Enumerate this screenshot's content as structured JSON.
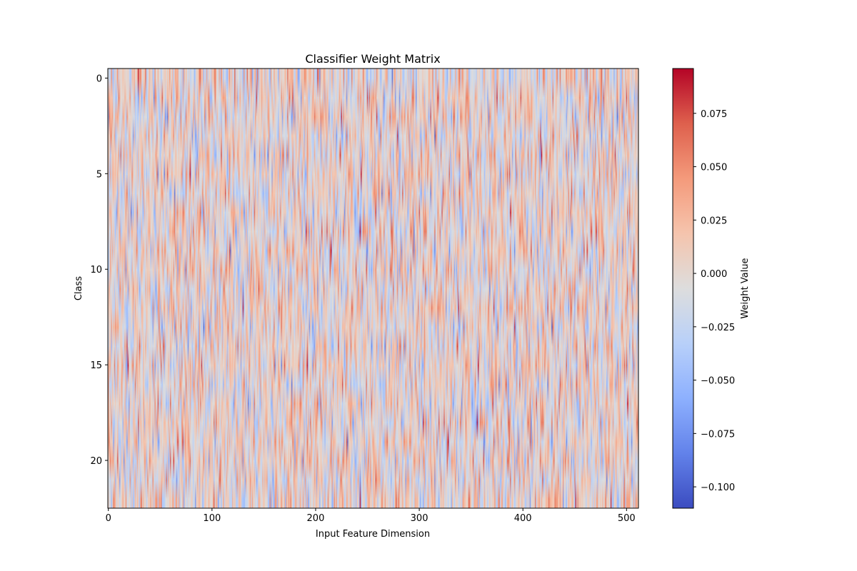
{
  "chart_data": {
    "type": "heatmap",
    "title": "Classifier Weight Matrix",
    "xlabel": "Input Feature Dimension",
    "ylabel": "Class",
    "n_rows": 23,
    "n_cols": 512,
    "xlim": [
      -0.5,
      511.5
    ],
    "ylim": [
      22.5,
      -0.5
    ],
    "xticks": [
      0,
      100,
      200,
      300,
      400,
      500
    ],
    "xtick_labels": [
      "0",
      "100",
      "200",
      "300",
      "400",
      "500"
    ],
    "yticks": [
      0,
      5,
      10,
      15,
      20
    ],
    "ytick_labels": [
      "0",
      "5",
      "10",
      "15",
      "20"
    ],
    "colormap": "coolwarm",
    "value_range": [
      -0.11,
      0.096
    ],
    "colorbar": {
      "label": "Weight Value",
      "ticks": [
        -0.1,
        -0.075,
        -0.05,
        -0.025,
        0.0,
        0.025,
        0.05,
        0.075
      ],
      "tick_labels": [
        "−0.100",
        "−0.075",
        "−0.050",
        "−0.025",
        "0.000",
        "0.025",
        "0.050",
        "0.075"
      ]
    }
  }
}
